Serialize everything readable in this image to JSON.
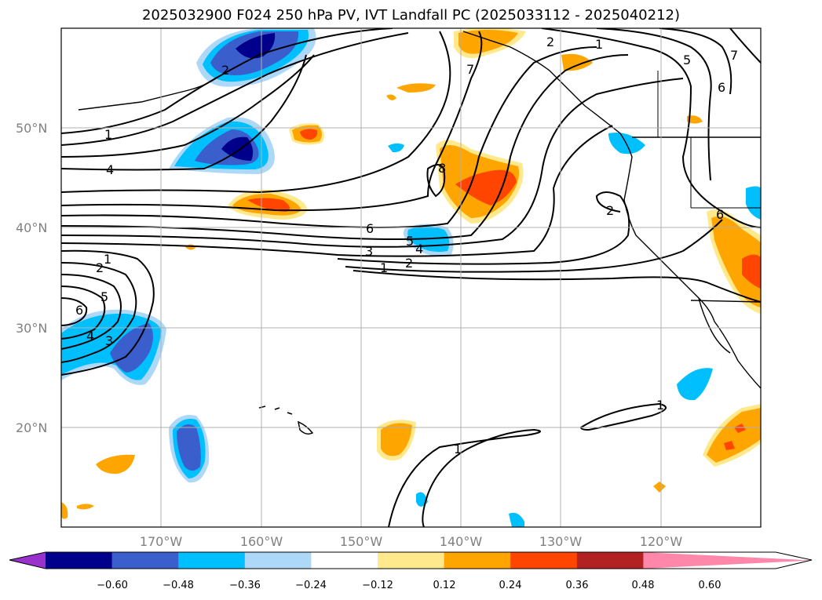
{
  "title": "2025032900 F024 250 hPa PV, IVT Landfall PC (2025033112 - 2025040212)",
  "latitude_labels": [
    "20°N",
    "30°N",
    "40°N",
    "50°N"
  ],
  "longitude_labels": [
    "170°W",
    "160°W",
    "150°W",
    "140°W",
    "130°W",
    "120°W"
  ],
  "colorbar": {
    "colors": [
      "#9932cc",
      "#00008b",
      "#3a5fcd",
      "#00bfff",
      "#add8f8",
      "#ffffff",
      "#ffe98c",
      "#ffa500",
      "#ff4500",
      "#b22222",
      "#ff88aa"
    ],
    "tick_labels": [
      "−0.60",
      "−0.48",
      "−0.36",
      "−0.24",
      "−0.12",
      "0.12",
      "0.24",
      "0.36",
      "0.48",
      "0.60"
    ]
  },
  "contour_labels": [
    "1",
    "2",
    "3",
    "4",
    "5",
    "6",
    "7",
    "8"
  ],
  "colors": {
    "positive": "#ffa500",
    "negative": "#00bfff",
    "grid": "#b0b0b0"
  }
}
